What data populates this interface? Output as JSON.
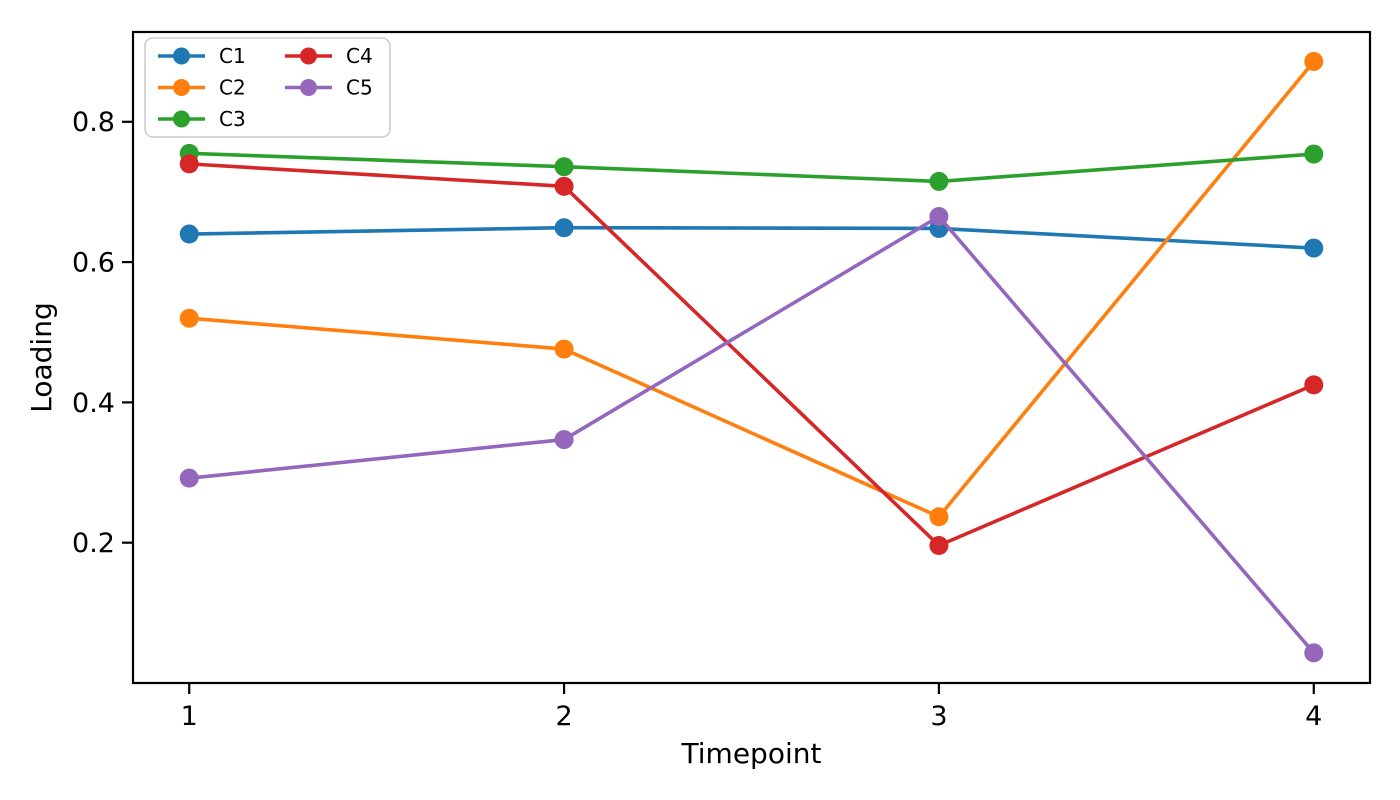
{
  "chart_data": {
    "type": "line",
    "title": "",
    "xlabel": "Timepoint",
    "ylabel": "Loading",
    "x": [
      1,
      2,
      3,
      4
    ],
    "series": [
      {
        "name": "C1",
        "color": "#1f77b4",
        "values": [
          0.64,
          0.649,
          0.648,
          0.62
        ]
      },
      {
        "name": "C2",
        "color": "#ff7f0e",
        "values": [
          0.52,
          0.476,
          0.237,
          0.886
        ]
      },
      {
        "name": "C3",
        "color": "#2ca02c",
        "values": [
          0.755,
          0.736,
          0.715,
          0.754
        ]
      },
      {
        "name": "C4",
        "color": "#d62728",
        "values": [
          0.74,
          0.708,
          0.196,
          0.425
        ]
      },
      {
        "name": "C5",
        "color": "#9467bd",
        "values": [
          0.292,
          0.347,
          0.665,
          0.043
        ]
      }
    ],
    "xticks": [
      1,
      2,
      3,
      4
    ],
    "xtick_labels": [
      "1",
      "2",
      "3",
      "4"
    ],
    "yticks": [
      0.2,
      0.4,
      0.6,
      0.8
    ],
    "ytick_labels": [
      "0.2",
      "0.4",
      "0.6",
      "0.8"
    ],
    "xlim": [
      0.85,
      4.15
    ],
    "ylim": [
      0.0,
      0.928
    ],
    "grid": false,
    "marker": "circle",
    "legend": {
      "position": "upper-left",
      "columns": 2,
      "entries": [
        "C1",
        "C2",
        "C3",
        "C4",
        "C5"
      ]
    },
    "axis_color": "#000000",
    "background_color": "#ffffff"
  }
}
